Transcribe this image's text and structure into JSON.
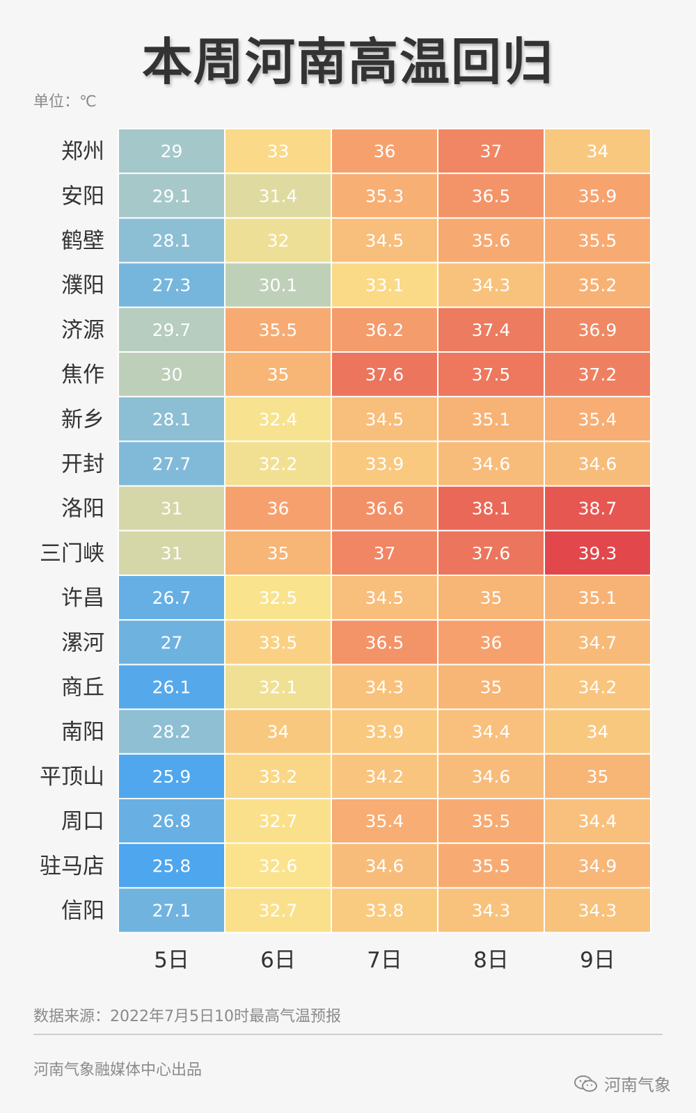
{
  "title": "本周河南高温回归",
  "unit": "单位：℃",
  "source": "数据来源：2022年7月5日10时最高气温预报",
  "producer": "河南气象融媒体中心出品",
  "brand": "河南气象",
  "brand_icon": "wechat-icon",
  "chart_data": {
    "type": "heatmap",
    "title": "本周河南高温回归",
    "unit": "℃",
    "columns": [
      "5日",
      "6日",
      "7日",
      "8日",
      "9日"
    ],
    "rows": [
      "郑州",
      "安阳",
      "鹤壁",
      "濮阳",
      "济源",
      "焦作",
      "新乡",
      "开封",
      "洛阳",
      "三门峡",
      "许昌",
      "漯河",
      "商丘",
      "南阳",
      "平顶山",
      "周口",
      "驻马店",
      "信阳"
    ],
    "values": [
      [
        "29",
        "33",
        "36",
        "37",
        "34"
      ],
      [
        "29.1",
        "31.4",
        "35.3",
        "36.5",
        "35.9"
      ],
      [
        "28.1",
        "32",
        "34.5",
        "35.6",
        "35.5"
      ],
      [
        "27.3",
        "30.1",
        "33.1",
        "34.3",
        "35.2"
      ],
      [
        "29.7",
        "35.5",
        "36.2",
        "37.4",
        "36.9"
      ],
      [
        "30",
        "35",
        "37.6",
        "37.5",
        "37.2"
      ],
      [
        "28.1",
        "32.4",
        "34.5",
        "35.1",
        "35.4"
      ],
      [
        "27.7",
        "32.2",
        "33.9",
        "34.6",
        "34.6"
      ],
      [
        "31",
        "36",
        "36.6",
        "38.1",
        "38.7"
      ],
      [
        "31",
        "35",
        "37",
        "37.6",
        "39.3"
      ],
      [
        "26.7",
        "32.5",
        "34.5",
        "35",
        "35.1"
      ],
      [
        "27",
        "33.5",
        "36.5",
        "36",
        "34.7"
      ],
      [
        "26.1",
        "32.1",
        "34.3",
        "35",
        "34.2"
      ],
      [
        "28.2",
        "34",
        "33.9",
        "34.4",
        "34"
      ],
      [
        "25.9",
        "33.2",
        "34.2",
        "34.6",
        "35"
      ],
      [
        "26.8",
        "32.7",
        "35.4",
        "35.5",
        "34.4"
      ],
      [
        "25.8",
        "32.6",
        "34.6",
        "35.5",
        "34.9"
      ],
      [
        "27.1",
        "32.7",
        "33.8",
        "34.3",
        "34.3"
      ]
    ],
    "color_scale": {
      "min": 25.8,
      "max": 39.3,
      "stops": [
        "#4da6ee",
        "#a9c9c8",
        "#fbe38c",
        "#f6a36e",
        "#e2474b"
      ]
    },
    "grid": true
  }
}
